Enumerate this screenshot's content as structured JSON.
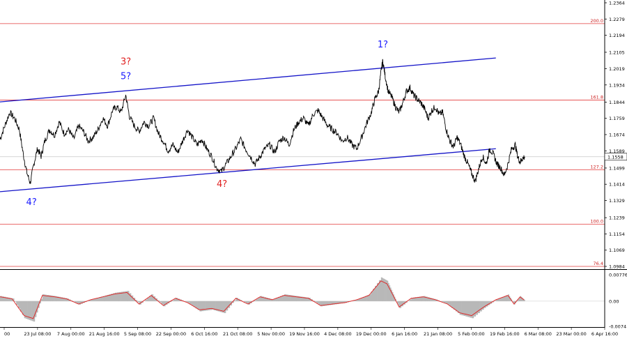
{
  "chart_data": {
    "type": "line",
    "title": "",
    "current_price": "1.1558",
    "price_axis": {
      "min": 1.0984,
      "max": 1.2364,
      "ticks": [
        "1.2364",
        "1.2279",
        "1.2194",
        "1.2105",
        "1.2019",
        "1.1934",
        "1.1844",
        "1.1759",
        "1.1674",
        "1.1589",
        "1.1499",
        "1.1414",
        "1.1329",
        "1.1239",
        "1.1154",
        "1.1069",
        "1.0984"
      ]
    },
    "time_axis": {
      "labels": [
        "00",
        "23 Jul 08:00",
        "7 Aug 00:00",
        "21 Aug 16:00",
        "5 Sep 08:00",
        "22 Sep 00:00",
        "6 Oct 16:00",
        "21 Oct 08:00",
        "5 Nov 00:00",
        "19 Nov 16:00",
        "4 Dec 08:00",
        "19 Dec 00:00",
        "6 Jan 16:00",
        "21 Jan 08:00",
        "5 Feb 00:00",
        "19 Feb 16:00",
        "6 Mar 08:00",
        "23 Mar 00:00",
        "6 Apr 16:00"
      ]
    },
    "fib_levels": [
      {
        "label": "200.0",
        "value": 1.2255
      },
      {
        "label": "161.8",
        "value": 1.1855
      },
      {
        "label": "127.2",
        "value": 1.149
      },
      {
        "label": "100.0",
        "value": 1.1205
      },
      {
        "label": "76.4",
        "value": 1.0984
      }
    ],
    "channel": {
      "upper": [
        {
          "t": 0,
          "v": 1.1845
        },
        {
          "t": 0.82,
          "v": 1.2075
        }
      ],
      "lower": [
        {
          "t": 0,
          "v": 1.1375
        },
        {
          "t": 0.82,
          "v": 1.16
        }
      ]
    },
    "wave_labels": [
      {
        "text": "4?",
        "t": 0.052,
        "v": 1.1305,
        "color": "#1a1aff"
      },
      {
        "text": "5?",
        "t": 0.208,
        "v": 1.1965,
        "color": "#1a1aff"
      },
      {
        "text": "3?",
        "t": 0.208,
        "v": 1.204,
        "color": "#e02020"
      },
      {
        "text": "4?",
        "t": 0.367,
        "v": 1.14,
        "color": "#e02020"
      },
      {
        "text": "1?",
        "t": 0.633,
        "v": 1.213,
        "color": "#1a1aff"
      }
    ],
    "price_series": [
      [
        0.0,
        1.165
      ],
      [
        0.008,
        1.172
      ],
      [
        0.016,
        1.179
      ],
      [
        0.024,
        1.176
      ],
      [
        0.032,
        1.17
      ],
      [
        0.038,
        1.158
      ],
      [
        0.044,
        1.148
      ],
      [
        0.05,
        1.142
      ],
      [
        0.056,
        1.152
      ],
      [
        0.062,
        1.16
      ],
      [
        0.068,
        1.156
      ],
      [
        0.074,
        1.164
      ],
      [
        0.082,
        1.17
      ],
      [
        0.09,
        1.167
      ],
      [
        0.098,
        1.174
      ],
      [
        0.106,
        1.168
      ],
      [
        0.114,
        1.17
      ],
      [
        0.122,
        1.165
      ],
      [
        0.13,
        1.172
      ],
      [
        0.138,
        1.169
      ],
      [
        0.146,
        1.164
      ],
      [
        0.154,
        1.166
      ],
      [
        0.162,
        1.17
      ],
      [
        0.17,
        1.176
      ],
      [
        0.178,
        1.172
      ],
      [
        0.186,
        1.18
      ],
      [
        0.193,
        1.182
      ],
      [
        0.2,
        1.179
      ],
      [
        0.208,
        1.188
      ],
      [
        0.214,
        1.177
      ],
      [
        0.222,
        1.172
      ],
      [
        0.23,
        1.169
      ],
      [
        0.238,
        1.174
      ],
      [
        0.246,
        1.172
      ],
      [
        0.254,
        1.176
      ],
      [
        0.262,
        1.168
      ],
      [
        0.27,
        1.164
      ],
      [
        0.278,
        1.159
      ],
      [
        0.286,
        1.162
      ],
      [
        0.294,
        1.158
      ],
      [
        0.302,
        1.164
      ],
      [
        0.31,
        1.17
      ],
      [
        0.318,
        1.166
      ],
      [
        0.326,
        1.162
      ],
      [
        0.334,
        1.165
      ],
      [
        0.342,
        1.16
      ],
      [
        0.35,
        1.156
      ],
      [
        0.358,
        1.15
      ],
      [
        0.366,
        1.148
      ],
      [
        0.374,
        1.152
      ],
      [
        0.382,
        1.156
      ],
      [
        0.39,
        1.16
      ],
      [
        0.398,
        1.165
      ],
      [
        0.406,
        1.16
      ],
      [
        0.414,
        1.156
      ],
      [
        0.422,
        1.152
      ],
      [
        0.43,
        1.156
      ],
      [
        0.438,
        1.16
      ],
      [
        0.446,
        1.162
      ],
      [
        0.454,
        1.158
      ],
      [
        0.462,
        1.164
      ],
      [
        0.47,
        1.166
      ],
      [
        0.478,
        1.162
      ],
      [
        0.486,
        1.17
      ],
      [
        0.494,
        1.174
      ],
      [
        0.502,
        1.176
      ],
      [
        0.51,
        1.172
      ],
      [
        0.518,
        1.178
      ],
      [
        0.526,
        1.18
      ],
      [
        0.534,
        1.176
      ],
      [
        0.542,
        1.172
      ],
      [
        0.55,
        1.17
      ],
      [
        0.558,
        1.168
      ],
      [
        0.566,
        1.164
      ],
      [
        0.574,
        1.166
      ],
      [
        0.582,
        1.162
      ],
      [
        0.59,
        1.16
      ],
      [
        0.598,
        1.166
      ],
      [
        0.606,
        1.173
      ],
      [
        0.614,
        1.179
      ],
      [
        0.62,
        1.186
      ],
      [
        0.626,
        1.19
      ],
      [
        0.63,
        1.2
      ],
      [
        0.633,
        1.206
      ],
      [
        0.637,
        1.198
      ],
      [
        0.642,
        1.19
      ],
      [
        0.648,
        1.187
      ],
      [
        0.654,
        1.182
      ],
      [
        0.66,
        1.179
      ],
      [
        0.666,
        1.184
      ],
      [
        0.672,
        1.19
      ],
      [
        0.678,
        1.192
      ],
      [
        0.684,
        1.188
      ],
      [
        0.69,
        1.186
      ],
      [
        0.696,
        1.184
      ],
      [
        0.702,
        1.181
      ],
      [
        0.708,
        1.176
      ],
      [
        0.714,
        1.18
      ],
      [
        0.72,
        1.182
      ],
      [
        0.726,
        1.178
      ],
      [
        0.732,
        1.179
      ],
      [
        0.738,
        1.17
      ],
      [
        0.744,
        1.164
      ],
      [
        0.75,
        1.161
      ],
      [
        0.756,
        1.166
      ],
      [
        0.762,
        1.162
      ],
      [
        0.768,
        1.156
      ],
      [
        0.774,
        1.152
      ],
      [
        0.78,
        1.147
      ],
      [
        0.786,
        1.143
      ],
      [
        0.792,
        1.15
      ],
      [
        0.798,
        1.156
      ],
      [
        0.804,
        1.152
      ],
      [
        0.81,
        1.16
      ],
      [
        0.816,
        1.157
      ],
      [
        0.822,
        1.152
      ],
      [
        0.828,
        1.15
      ],
      [
        0.834,
        1.146
      ],
      [
        0.84,
        1.152
      ],
      [
        0.846,
        1.16
      ],
      [
        0.852,
        1.162
      ],
      [
        0.856,
        1.156
      ],
      [
        0.86,
        1.153
      ],
      [
        0.864,
        1.155
      ],
      [
        0.868,
        1.1558
      ]
    ],
    "oscillator": {
      "min": -0.0074,
      "max": 0.00776,
      "ticks": [
        "0.00776",
        "0.00",
        "-0.0074"
      ],
      "values": [
        [
          0.0,
          0.0015
        ],
        [
          0.02,
          0.0008
        ],
        [
          0.04,
          -0.005
        ],
        [
          0.055,
          -0.006
        ],
        [
          0.07,
          0.002
        ],
        [
          0.09,
          0.0015
        ],
        [
          0.11,
          0.0008
        ],
        [
          0.13,
          -0.001
        ],
        [
          0.15,
          0.0005
        ],
        [
          0.17,
          0.0015
        ],
        [
          0.19,
          0.0025
        ],
        [
          0.21,
          0.003
        ],
        [
          0.23,
          -0.001
        ],
        [
          0.25,
          0.002
        ],
        [
          0.27,
          -0.0015
        ],
        [
          0.29,
          0.001
        ],
        [
          0.31,
          -0.0005
        ],
        [
          0.33,
          -0.003
        ],
        [
          0.35,
          -0.0025
        ],
        [
          0.37,
          -0.0035
        ],
        [
          0.39,
          0.001
        ],
        [
          0.41,
          -0.001
        ],
        [
          0.43,
          0.0015
        ],
        [
          0.45,
          0.0005
        ],
        [
          0.47,
          0.002
        ],
        [
          0.49,
          0.0015
        ],
        [
          0.51,
          0.001
        ],
        [
          0.53,
          -0.0015
        ],
        [
          0.55,
          -0.001
        ],
        [
          0.57,
          -0.0005
        ],
        [
          0.59,
          0.0005
        ],
        [
          0.61,
          0.002
        ],
        [
          0.63,
          0.007
        ],
        [
          0.64,
          0.006
        ],
        [
          0.65,
          0.002
        ],
        [
          0.66,
          -0.002
        ],
        [
          0.68,
          0.001
        ],
        [
          0.7,
          0.0015
        ],
        [
          0.72,
          0.0005
        ],
        [
          0.74,
          -0.001
        ],
        [
          0.76,
          -0.004
        ],
        [
          0.78,
          -0.005
        ],
        [
          0.8,
          -0.002
        ],
        [
          0.82,
          0.0005
        ],
        [
          0.84,
          0.002
        ],
        [
          0.85,
          -0.001
        ],
        [
          0.86,
          0.0015
        ],
        [
          0.868,
          0.0002
        ]
      ]
    }
  }
}
